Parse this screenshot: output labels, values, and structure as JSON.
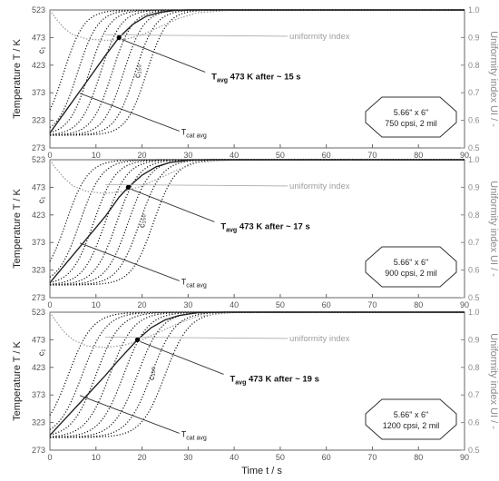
{
  "chart_data": [
    {
      "type": "line",
      "xlim": [
        0,
        90
      ],
      "ylim": [
        273,
        523
      ],
      "y2lim": [
        0.5,
        1.0
      ],
      "x_ticks": [
        0,
        10,
        20,
        30,
        40,
        50,
        60,
        70,
        80,
        90
      ],
      "y_ticks": [
        273,
        323,
        373,
        423,
        473,
        523
      ],
      "y2_ticks": [
        0.5,
        0.6,
        0.7,
        0.8,
        0.9,
        1.0
      ],
      "ylabel": "Temperature T / K",
      "y2label": "Uniformity index UI / -",
      "labels": {
        "c1": "c₁",
        "c150": "c₁₅₀",
        "tcat_main": "T",
        "tcat_sub": "cat avg",
        "ui": "uniformity index"
      },
      "annotation": {
        "main": "T",
        "sub": "avg",
        "rest": " 473 K after ~ 15 s"
      },
      "monolith": {
        "line1": "5.66\" x 6\"",
        "line2": "750 cpsi, 2 mil"
      },
      "t473": 15,
      "channel_curve_midpoints": [
        3.0,
        6.0,
        8.5,
        11.0,
        13.5,
        16.0,
        18.5,
        21.0
      ],
      "channel_curve_width": 2.2,
      "tcat_avg": {
        "t": [
          0,
          3,
          6,
          9,
          12,
          15,
          18,
          21,
          24,
          27,
          30,
          35
        ],
        "T": [
          300,
          335,
          370,
          405,
          440,
          473,
          497,
          512,
          519,
          522,
          523,
          523
        ]
      },
      "uniformity": {
        "t": [
          0,
          1,
          3,
          5,
          8,
          12,
          16,
          20,
          24,
          28,
          32,
          40,
          60,
          90
        ],
        "UI": [
          1.0,
          0.975,
          0.935,
          0.91,
          0.895,
          0.89,
          0.892,
          0.91,
          0.94,
          0.97,
          0.99,
          1.0,
          1.0,
          1.0
        ]
      }
    },
    {
      "type": "line",
      "xlim": [
        0,
        90
      ],
      "ylim": [
        273,
        523
      ],
      "y2lim": [
        0.5,
        1.0
      ],
      "x_ticks": [
        0,
        10,
        20,
        30,
        40,
        50,
        60,
        70,
        80,
        90
      ],
      "y_ticks": [
        273,
        323,
        373,
        423,
        473,
        523
      ],
      "y2_ticks": [
        0.5,
        0.6,
        0.7,
        0.8,
        0.9,
        1.0
      ],
      "ylabel": "Temperature T / K",
      "y2label": "Uniformity index UI / -",
      "labels": {
        "c1": "c₁",
        "c150": "c₁₅₀",
        "tcat_main": "T",
        "tcat_sub": "cat avg",
        "ui": "uniformity index"
      },
      "annotation": {
        "main": "T",
        "sub": "avg",
        "rest": " 473 K after ~ 17 s"
      },
      "monolith": {
        "line1": "5.66\" x 6\"",
        "line2": "900 cpsi, 2 mil"
      },
      "t473": 17,
      "channel_curve_midpoints": [
        3.5,
        6.5,
        9.5,
        12.0,
        14.5,
        17.0,
        19.5,
        22.5
      ],
      "channel_curve_width": 2.4,
      "tcat_avg": {
        "t": [
          0,
          3,
          6,
          9,
          12,
          15,
          17,
          20,
          23,
          26,
          30,
          35
        ],
        "T": [
          300,
          330,
          360,
          390,
          420,
          455,
          473,
          495,
          510,
          518,
          522,
          523
        ]
      },
      "uniformity": {
        "t": [
          0,
          1,
          3,
          5,
          8,
          12,
          16,
          20,
          24,
          28,
          32,
          40,
          60,
          90
        ],
        "UI": [
          1.0,
          0.975,
          0.935,
          0.905,
          0.885,
          0.878,
          0.885,
          0.905,
          0.935,
          0.965,
          0.99,
          1.0,
          1.0,
          1.0
        ]
      }
    },
    {
      "type": "line",
      "xlim": [
        0,
        90
      ],
      "ylim": [
        273,
        523
      ],
      "y2lim": [
        0.5,
        1.0
      ],
      "x_ticks": [
        0,
        10,
        20,
        30,
        40,
        50,
        60,
        70,
        80,
        90
      ],
      "y_ticks": [
        273,
        323,
        373,
        423,
        473,
        523
      ],
      "y2_ticks": [
        0.5,
        0.6,
        0.7,
        0.8,
        0.9,
        1.0
      ],
      "ylabel": "Temperature T / K",
      "y2label": "Uniformity index UI / -",
      "xlabel": "Time  t  / s",
      "labels": {
        "c1": "c₁",
        "c150": "c₁₅₀",
        "tcat_main": "T",
        "tcat_sub": "cat avg",
        "ui": "uniformity index"
      },
      "annotation": {
        "main": "T",
        "sub": "avg",
        "rest": " 473 K after ~ 19 s"
      },
      "monolith": {
        "line1": "5.66\" x 6\"",
        "line2": "1200 cpsi, 2 mil"
      },
      "t473": 19,
      "channel_curve_midpoints": [
        4.0,
        7.0,
        10.0,
        13.0,
        16.0,
        19.0,
        22.0,
        25.0
      ],
      "channel_curve_width": 2.6,
      "tcat_avg": {
        "t": [
          0,
          3,
          6,
          9,
          12,
          15,
          19,
          22,
          25,
          28,
          32,
          38
        ],
        "T": [
          300,
          327,
          354,
          381,
          408,
          437,
          473,
          495,
          509,
          517,
          522,
          523
        ]
      },
      "uniformity": {
        "t": [
          0,
          1,
          3,
          5,
          8,
          12,
          16,
          20,
          24,
          28,
          32,
          40,
          60,
          90
        ],
        "UI": [
          1.0,
          0.975,
          0.93,
          0.9,
          0.878,
          0.872,
          0.88,
          0.9,
          0.93,
          0.96,
          0.985,
          1.0,
          1.0,
          1.0
        ]
      }
    }
  ]
}
